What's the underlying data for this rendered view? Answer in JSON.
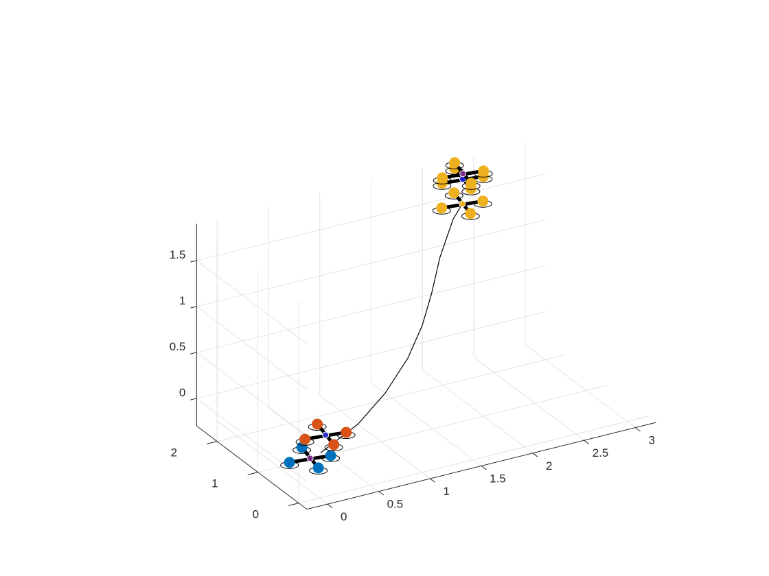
{
  "chart_data": {
    "type": "line",
    "projection": "3d",
    "title": "",
    "xlabel": "",
    "ylabel": "",
    "zlabel": "",
    "grid": true,
    "xlim": [
      -0.2,
      3.2
    ],
    "ylim": [
      -0.2,
      2.5
    ],
    "zlim": [
      -0.3,
      1.9
    ],
    "x_ticks": [
      {
        "value": 0,
        "label": "0"
      },
      {
        "value": 0.5,
        "label": "0.5"
      },
      {
        "value": 1,
        "label": "1"
      },
      {
        "value": 1.5,
        "label": "1.5"
      },
      {
        "value": 2,
        "label": "2"
      },
      {
        "value": 2.5,
        "label": "2.5"
      },
      {
        "value": 3,
        "label": "3"
      }
    ],
    "y_ticks": [
      {
        "value": 0,
        "label": "0"
      },
      {
        "value": 1,
        "label": "1"
      },
      {
        "value": 2,
        "label": "2"
      }
    ],
    "z_ticks": [
      {
        "value": 0,
        "label": "0"
      },
      {
        "value": 0.5,
        "label": "0.5"
      },
      {
        "value": 1,
        "label": "1"
      },
      {
        "value": 1.5,
        "label": "1.5"
      }
    ],
    "series": [
      {
        "style": "line",
        "color": "#000000",
        "points": [
          {
            "x": 0.18,
            "y": 0.42,
            "z": 0.0
          },
          {
            "x": 0.6,
            "y": 0.56,
            "z": 0.15
          },
          {
            "x": 0.92,
            "y": 0.7,
            "z": 0.35
          },
          {
            "x": 1.2,
            "y": 0.85,
            "z": 0.6
          },
          {
            "x": 1.4,
            "y": 1.0,
            "z": 0.85
          },
          {
            "x": 1.55,
            "y": 1.15,
            "z": 1.1
          },
          {
            "x": 1.7,
            "y": 1.32,
            "z": 1.4
          },
          {
            "x": 1.9,
            "y": 1.5,
            "z": 1.7
          },
          {
            "x": 2.03,
            "y": 1.6,
            "z": 1.8
          }
        ]
      }
    ],
    "markers": [
      {
        "kind": "quadrotor",
        "x": 0.05,
        "y": 0.35,
        "z": 0.0,
        "color": "#0072bd",
        "hub": "#7e2f8e"
      },
      {
        "kind": "quadrotor",
        "x": 0.3,
        "y": 0.6,
        "z": 0.1,
        "color": "#d95319",
        "hub": "#3030c8"
      },
      {
        "kind": "quadrotor",
        "x": 2.03,
        "y": 1.6,
        "z": 1.8,
        "color": "#edb120",
        "hub": "#edb120"
      },
      {
        "kind": "quadrotor",
        "x": 2.05,
        "y": 1.64,
        "z": 2.05,
        "color": "#edb120",
        "hub": "#2020d0"
      },
      {
        "kind": "quadrotor",
        "x": 2.06,
        "y": 1.66,
        "z": 2.1,
        "color": "#edb120",
        "hub": "#7e2f8e"
      }
    ]
  }
}
